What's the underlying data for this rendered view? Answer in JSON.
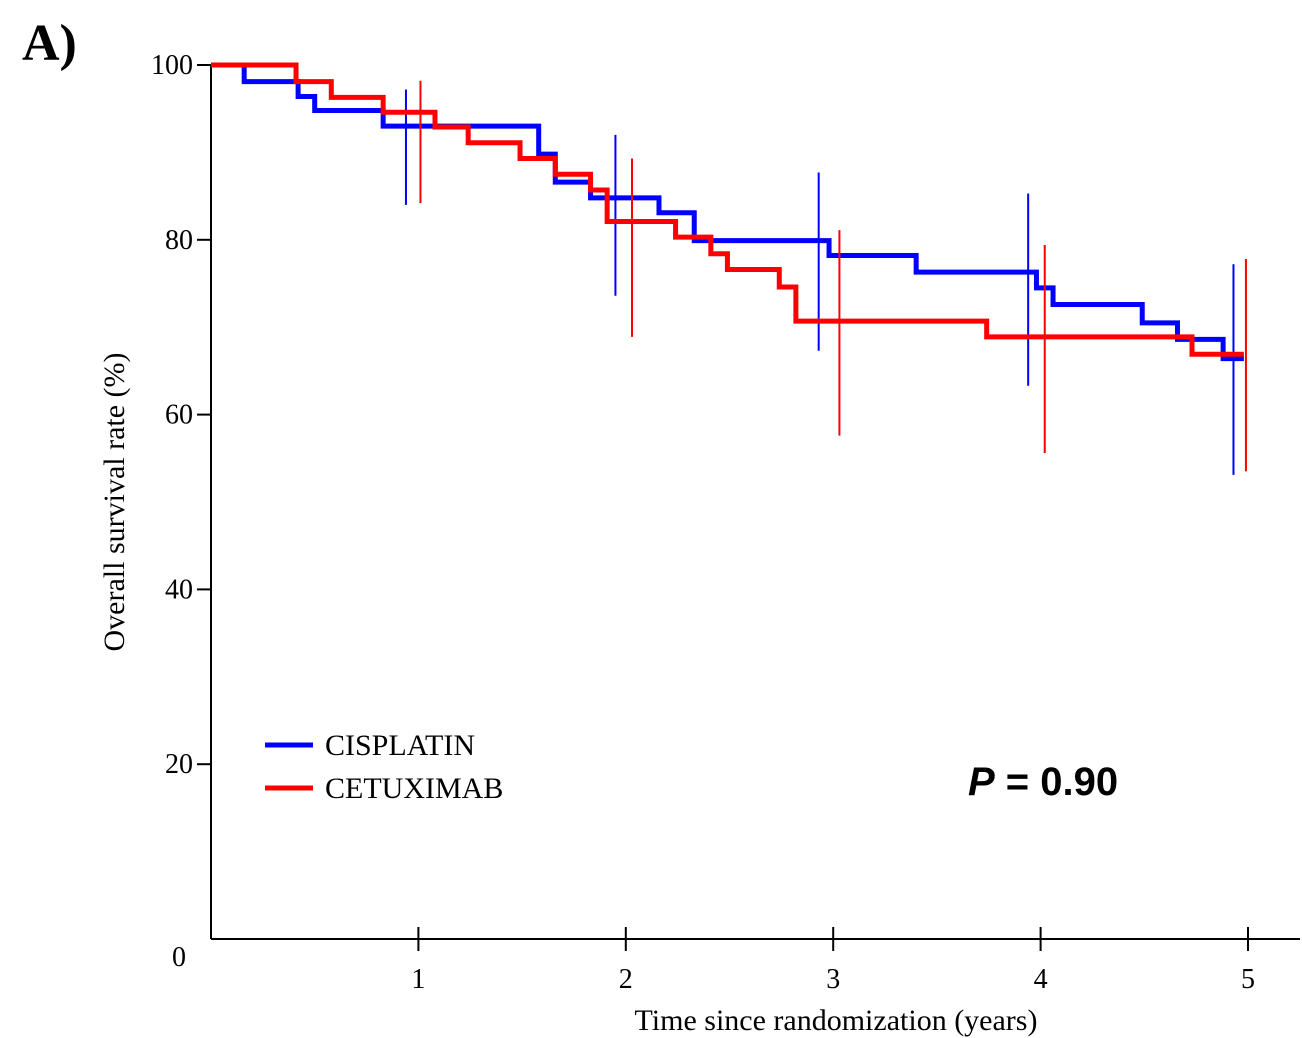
{
  "panel_label": "A)",
  "p_value": {
    "symbol": "P",
    "text": " = 0.90"
  },
  "chart_data": {
    "type": "line",
    "step": true,
    "xlabel": "Time since randomization (years)",
    "ylabel": "Overall survival rate (%)",
    "xlim": [
      0,
      5.25
    ],
    "ylim": [
      0,
      100
    ],
    "x_ticks": [
      1,
      2,
      3,
      4,
      5
    ],
    "y_ticks": [
      0,
      20,
      40,
      60,
      80,
      100
    ],
    "grid": false,
    "legend_position": "bottom-left",
    "series": [
      {
        "name": "CISPLATIN",
        "color": "#0000ff",
        "points": [
          [
            0,
            100
          ],
          [
            0.16,
            98.1
          ],
          [
            0.42,
            96.4
          ],
          [
            0.5,
            94.8
          ],
          [
            0.83,
            93.0
          ],
          [
            1.58,
            89.8
          ],
          [
            1.66,
            86.6
          ],
          [
            1.83,
            84.8
          ],
          [
            2.16,
            83.1
          ],
          [
            2.33,
            79.9
          ],
          [
            2.98,
            78.2
          ],
          [
            3.4,
            76.3
          ],
          [
            3.98,
            74.5
          ],
          [
            4.06,
            72.6
          ],
          [
            4.49,
            70.5
          ],
          [
            4.66,
            68.6
          ],
          [
            4.88,
            66.4
          ],
          [
            4.98,
            66.4
          ]
        ],
        "ci_bars": [
          {
            "x": 0.94,
            "lower": 84.0,
            "upper": 97.2
          },
          {
            "x": 1.95,
            "lower": 73.6,
            "upper": 92.0
          },
          {
            "x": 2.93,
            "lower": 67.3,
            "upper": 87.7
          },
          {
            "x": 3.94,
            "lower": 63.3,
            "upper": 85.3
          },
          {
            "x": 4.93,
            "lower": 53.1,
            "upper": 77.2
          }
        ]
      },
      {
        "name": "CETUXIMAB",
        "color": "#ff0000",
        "points": [
          [
            0,
            100
          ],
          [
            0.41,
            98.1
          ],
          [
            0.58,
            96.3
          ],
          [
            0.83,
            94.6
          ],
          [
            1.08,
            92.9
          ],
          [
            1.24,
            91.1
          ],
          [
            1.49,
            89.3
          ],
          [
            1.66,
            87.5
          ],
          [
            1.83,
            85.7
          ],
          [
            1.91,
            82.1
          ],
          [
            2.24,
            80.3
          ],
          [
            2.41,
            78.4
          ],
          [
            2.49,
            76.6
          ],
          [
            2.74,
            74.6
          ],
          [
            2.82,
            70.7
          ],
          [
            3.74,
            68.9
          ],
          [
            4.73,
            66.9
          ],
          [
            4.98,
            66.9
          ]
        ],
        "ci_bars": [
          {
            "x": 1.01,
            "lower": 84.2,
            "upper": 98.2
          },
          {
            "x": 2.03,
            "lower": 68.9,
            "upper": 89.3
          },
          {
            "x": 3.03,
            "lower": 57.6,
            "upper": 81.1
          },
          {
            "x": 4.02,
            "lower": 55.6,
            "upper": 79.4
          },
          {
            "x": 4.99,
            "lower": 53.5,
            "upper": 77.8
          }
        ]
      }
    ]
  }
}
